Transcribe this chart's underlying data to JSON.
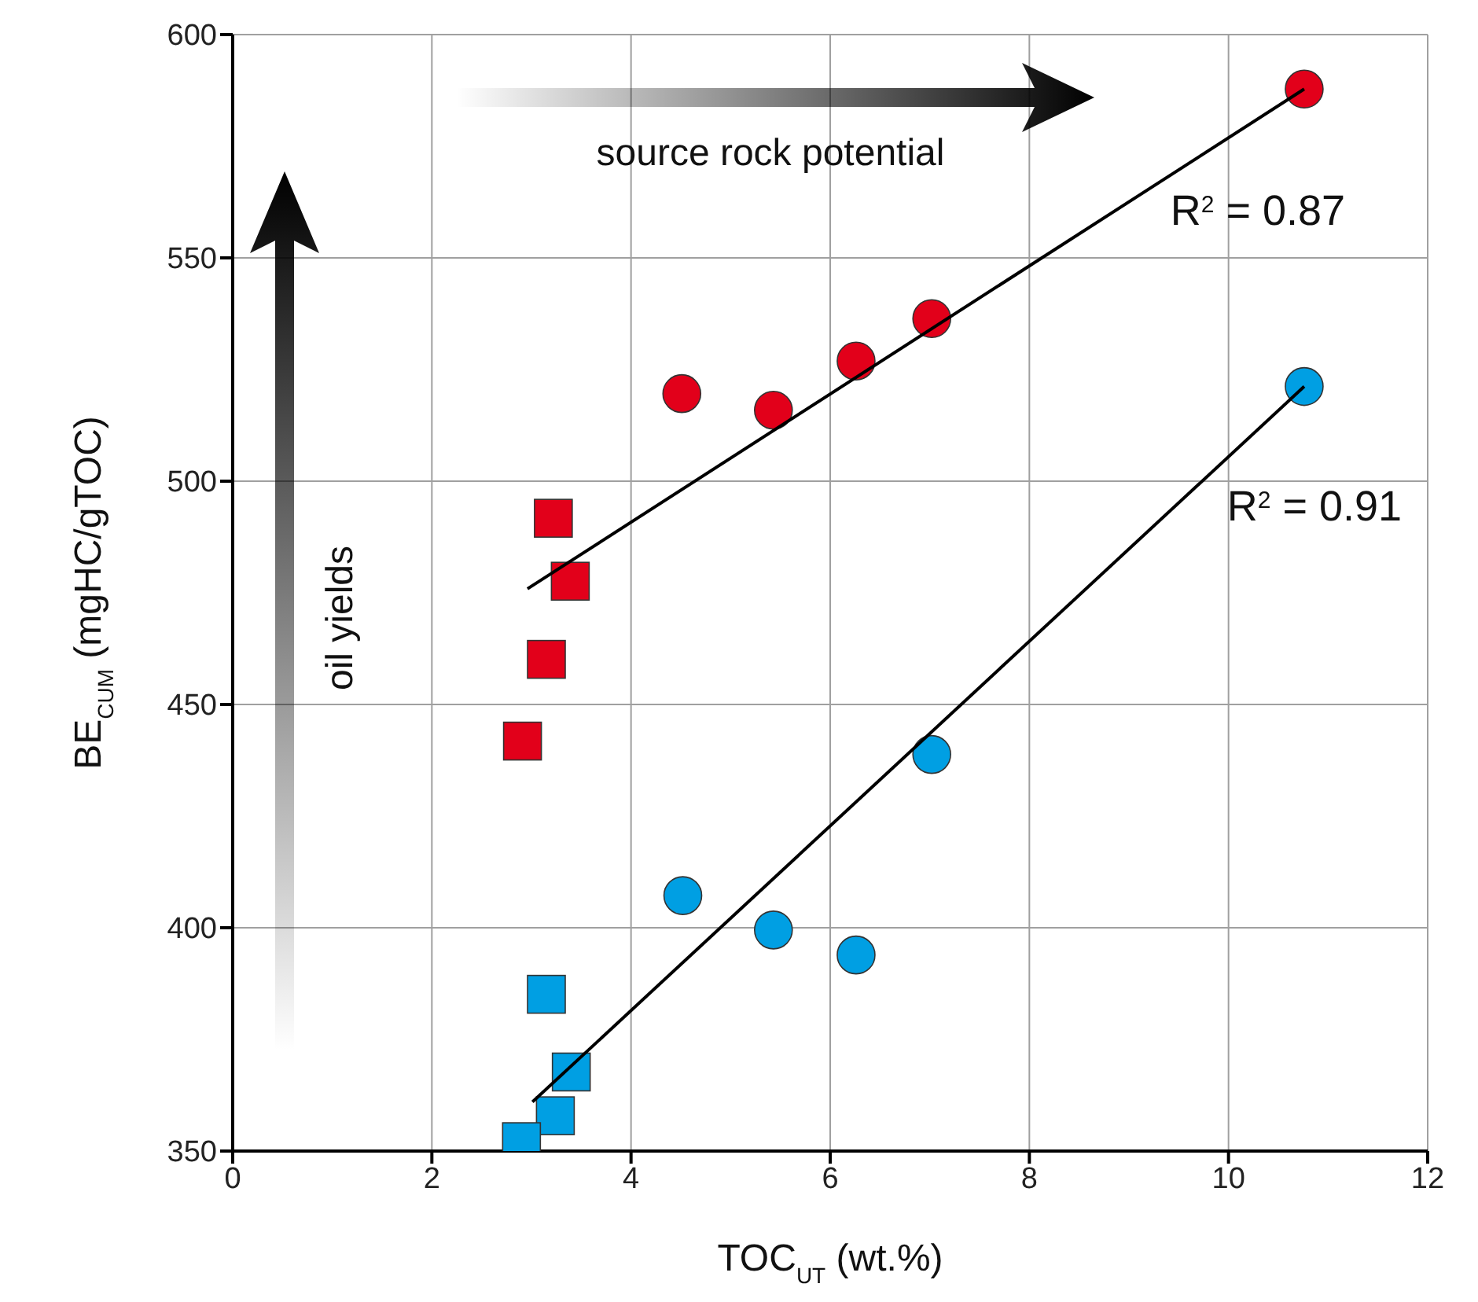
{
  "chart_data": {
    "type": "scatter",
    "xlabel": "TOC$_{UT}$ (wt.%)",
    "ylabel": "BE$_{CUM}$ (mgHC/gTOC)",
    "xlim": [
      0,
      12
    ],
    "xticks": [
      0,
      2,
      4,
      6,
      8,
      10,
      12
    ],
    "ylim": [
      350,
      600
    ],
    "yticks": [
      350,
      400,
      450,
      500,
      550,
      600
    ],
    "grid": true,
    "legend": false,
    "series": [
      {
        "marker": "circle",
        "color": "#e2001a",
        "x": [
          4.51,
          5.43,
          6.26,
          7.02,
          10.76
        ],
        "values": [
          519.6,
          515.9,
          526.9,
          536.4,
          587.8
        ]
      },
      {
        "marker": "square",
        "color": "#e2001a",
        "x": [
          3.22,
          3.39,
          3.15,
          2.91
        ],
        "values": [
          491.7,
          477.6,
          460.1,
          441.8
        ]
      },
      {
        "marker": "circle",
        "color": "#009fe3",
        "x": [
          4.52,
          5.43,
          6.26,
          7.02,
          10.76
        ],
        "values": [
          407.2,
          399.5,
          393.9,
          438.8,
          521.2
        ]
      },
      {
        "marker": "square",
        "color": "#009fe3",
        "x": [
          3.15,
          3.4,
          3.24,
          2.9
        ],
        "values": [
          385.1,
          367.7,
          357.9,
          352.1
        ]
      },
      {
        "type": "line",
        "marker": "none",
        "color": "#000000",
        "x": [
          2.96,
          10.76
        ],
        "values": [
          475.9,
          587.8
        ]
      },
      {
        "type": "line",
        "marker": "none",
        "color": "#000000",
        "x": [
          3.01,
          10.76
        ],
        "values": [
          361.0,
          521.2
        ]
      }
    ],
    "annotations": [
      "source rock potential",
      "oil yields",
      "R$^{2}$ = 0.87",
      "R$^{2}$ = 0.91"
    ]
  }
}
